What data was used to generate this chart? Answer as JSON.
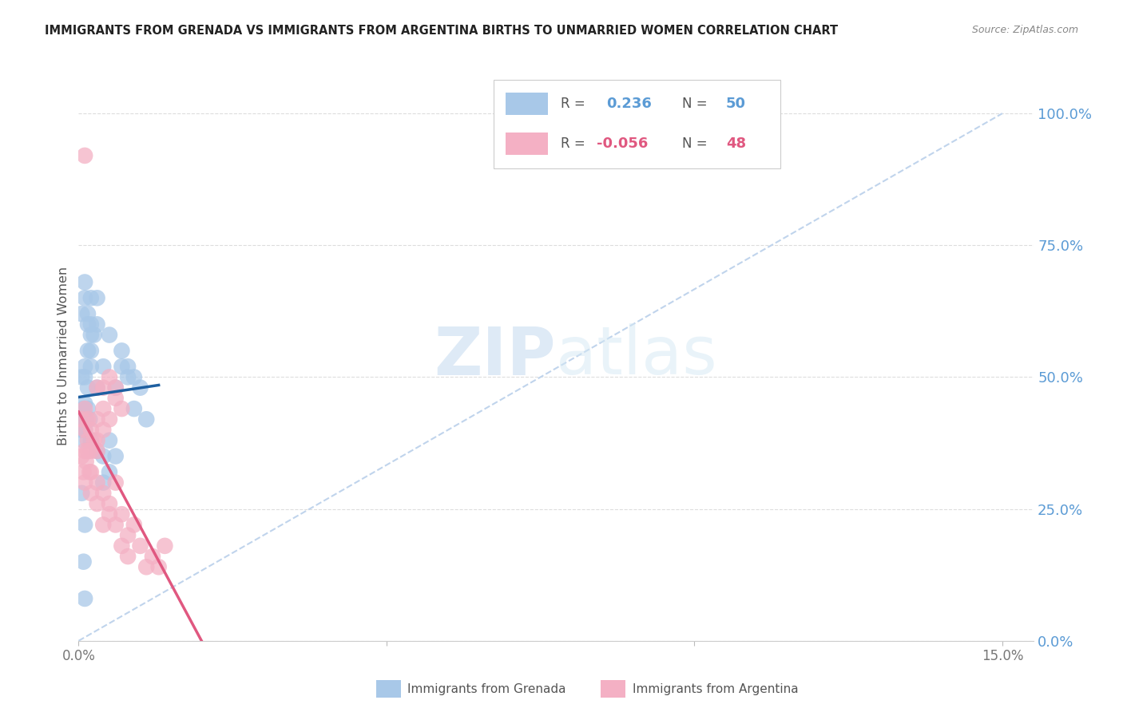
{
  "title": "IMMIGRANTS FROM GRENADA VS IMMIGRANTS FROM ARGENTINA BIRTHS TO UNMARRIED WOMEN CORRELATION CHART",
  "source": "Source: ZipAtlas.com",
  "ylabel": "Births to Unmarried Women",
  "ytick_vals": [
    0.0,
    0.25,
    0.5,
    0.75,
    1.0
  ],
  "ytick_labels": [
    "0.0%",
    "25.0%",
    "50.0%",
    "75.0%",
    "100.0%"
  ],
  "xtick_vals": [
    0.0,
    0.05,
    0.1,
    0.15
  ],
  "xtick_labels": [
    "0.0%",
    "",
    "",
    "15.0%"
  ],
  "xlim": [
    0.0,
    0.155
  ],
  "ylim": [
    0.0,
    1.08
  ],
  "grenada_color": "#a8c8e8",
  "argentina_color": "#f4b0c4",
  "grenada_line_color": "#1e5fa0",
  "argentina_line_color": "#e05880",
  "diagonal_color": "#c0d4ec",
  "grenada_R": 0.236,
  "grenada_N": 50,
  "argentina_R": -0.056,
  "argentina_N": 48,
  "grenada_x": [
    0.0005,
    0.001,
    0.001,
    0.0015,
    0.0015,
    0.002,
    0.002,
    0.0025,
    0.003,
    0.003,
    0.0005,
    0.001,
    0.001,
    0.0015,
    0.002,
    0.0015,
    0.002,
    0.002,
    0.001,
    0.0008,
    0.0005,
    0.001,
    0.0015,
    0.001,
    0.0008,
    0.0012,
    0.0018,
    0.002,
    0.003,
    0.004,
    0.003,
    0.004,
    0.005,
    0.004,
    0.005,
    0.006,
    0.006,
    0.007,
    0.008,
    0.009,
    0.005,
    0.007,
    0.008,
    0.009,
    0.01,
    0.011,
    0.0005,
    0.001,
    0.0008,
    0.001
  ],
  "grenada_y": [
    0.62,
    0.65,
    0.68,
    0.62,
    0.6,
    0.65,
    0.6,
    0.58,
    0.65,
    0.6,
    0.5,
    0.52,
    0.5,
    0.55,
    0.58,
    0.48,
    0.52,
    0.55,
    0.45,
    0.44,
    0.4,
    0.42,
    0.44,
    0.4,
    0.38,
    0.42,
    0.42,
    0.38,
    0.48,
    0.52,
    0.36,
    0.35,
    0.38,
    0.3,
    0.32,
    0.35,
    0.48,
    0.52,
    0.5,
    0.44,
    0.58,
    0.55,
    0.52,
    0.5,
    0.48,
    0.42,
    0.28,
    0.22,
    0.15,
    0.08
  ],
  "argentina_x": [
    0.0005,
    0.001,
    0.001,
    0.0015,
    0.0015,
    0.002,
    0.002,
    0.0025,
    0.003,
    0.003,
    0.0005,
    0.001,
    0.0012,
    0.0015,
    0.0008,
    0.001,
    0.002,
    0.003,
    0.004,
    0.003,
    0.004,
    0.005,
    0.004,
    0.005,
    0.006,
    0.006,
    0.007,
    0.003,
    0.002,
    0.0018,
    0.003,
    0.004,
    0.005,
    0.006,
    0.004,
    0.005,
    0.006,
    0.007,
    0.008,
    0.009,
    0.007,
    0.008,
    0.01,
    0.011,
    0.012,
    0.013,
    0.014,
    0.001
  ],
  "argentina_y": [
    0.42,
    0.44,
    0.4,
    0.42,
    0.38,
    0.4,
    0.36,
    0.38,
    0.42,
    0.38,
    0.35,
    0.36,
    0.34,
    0.36,
    0.32,
    0.3,
    0.32,
    0.36,
    0.4,
    0.48,
    0.48,
    0.5,
    0.44,
    0.42,
    0.46,
    0.48,
    0.44,
    0.3,
    0.28,
    0.32,
    0.26,
    0.28,
    0.26,
    0.3,
    0.22,
    0.24,
    0.22,
    0.24,
    0.2,
    0.22,
    0.18,
    0.16,
    0.18,
    0.14,
    0.16,
    0.14,
    0.18,
    0.92
  ],
  "background_color": "#ffffff",
  "grid_color": "#dddddd"
}
